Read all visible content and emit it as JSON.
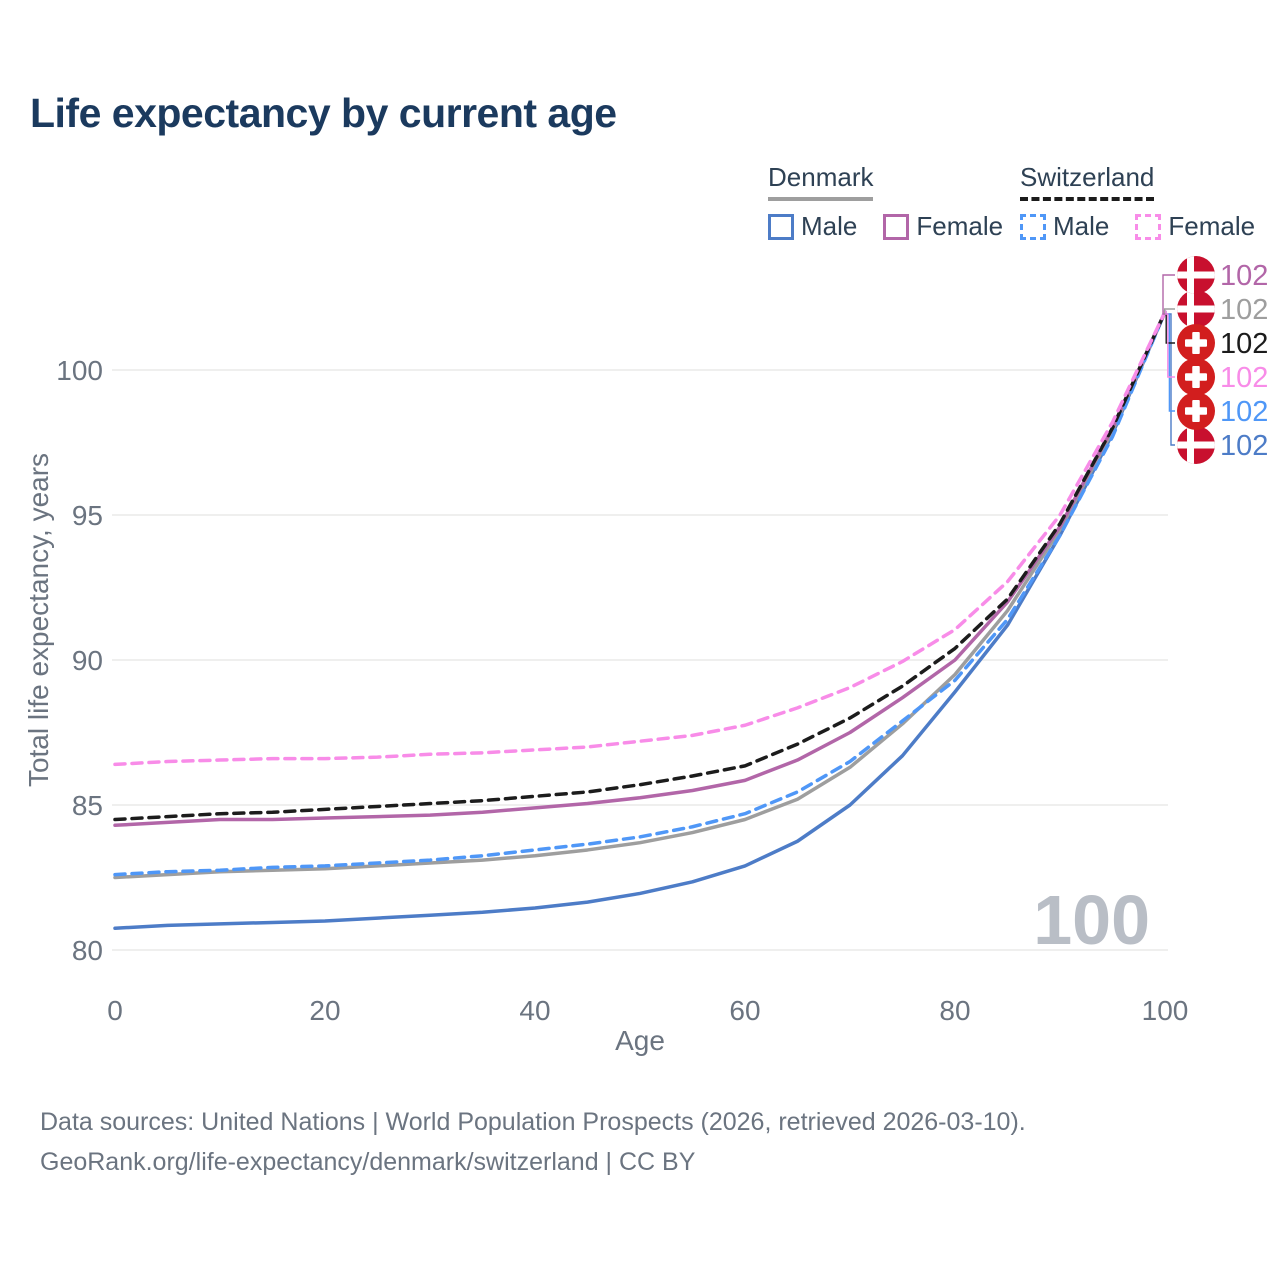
{
  "title": "Life expectancy by current age",
  "legend": {
    "groups": [
      {
        "name": "Denmark",
        "line_color": "#9e9e9e",
        "line_dashed": false,
        "items": [
          {
            "label": "Male",
            "color": "#4d7cc7",
            "dashed": false
          },
          {
            "label": "Female",
            "color": "#b266a8",
            "dashed": false
          }
        ]
      },
      {
        "name": "Switzerland",
        "line_color": "#1c1c1c",
        "line_dashed": true,
        "items": [
          {
            "label": "Male",
            "color": "#4f97f7",
            "dashed": true
          },
          {
            "label": "Female",
            "color": "#f88ce8",
            "dashed": true
          }
        ]
      }
    ]
  },
  "palette": {
    "title_text": "#1b3a5e",
    "legend_text": "#2e4154",
    "axis_text": "#6b7480",
    "grid": "#efefee",
    "watermark": "#b9bec6",
    "denmark_flag_red": "#c8102e",
    "swiss_flag_red": "#d21e1e"
  },
  "watermark_age_counter": "100",
  "chart_data": {
    "type": "line",
    "title": "Life expectancy by current age",
    "xlabel": "Age",
    "ylabel": "Total life expectancy, years",
    "xlim": [
      0,
      100
    ],
    "ylim": [
      80,
      102.5
    ],
    "xticks": [
      0,
      20,
      40,
      60,
      80,
      100
    ],
    "yticks": [
      80,
      85,
      90,
      95,
      100
    ],
    "grid": "horizontal",
    "legend_position": "top-right",
    "x": [
      0,
      5,
      10,
      15,
      20,
      25,
      30,
      35,
      40,
      45,
      50,
      55,
      60,
      65,
      70,
      75,
      80,
      85,
      90,
      95,
      100
    ],
    "series": [
      {
        "id": "denmark-male",
        "name": "Denmark — Male",
        "country": "Denmark",
        "sex": "Male",
        "color": "#4d7cc7",
        "dashed": false,
        "flag": "denmark",
        "end_label": "102",
        "label_row": 5,
        "values": [
          80.75,
          80.85,
          80.9,
          80.95,
          81.0,
          81.1,
          81.2,
          81.3,
          81.45,
          81.65,
          81.95,
          82.35,
          82.9,
          83.75,
          85.0,
          86.7,
          88.9,
          91.2,
          94.3,
          97.8,
          102
        ]
      },
      {
        "id": "denmark-both",
        "name": "Denmark — Both sexes",
        "country": "Denmark",
        "sex": "Both",
        "color": "#9e9e9e",
        "dashed": false,
        "flag": "denmark",
        "end_label": "102",
        "label_row": 1,
        "values": [
          82.5,
          82.6,
          82.7,
          82.75,
          82.8,
          82.9,
          83.0,
          83.1,
          83.25,
          83.45,
          83.7,
          84.05,
          84.5,
          85.2,
          86.3,
          87.8,
          89.5,
          91.7,
          94.5,
          97.9,
          102
        ]
      },
      {
        "id": "denmark-female",
        "name": "Denmark — Female",
        "country": "Denmark",
        "sex": "Female",
        "color": "#b266a8",
        "dashed": false,
        "flag": "denmark",
        "end_label": "102",
        "label_row": 0,
        "values": [
          84.3,
          84.4,
          84.5,
          84.5,
          84.55,
          84.6,
          84.65,
          84.75,
          84.9,
          85.05,
          85.25,
          85.5,
          85.85,
          86.55,
          87.5,
          88.7,
          90.0,
          92.0,
          94.6,
          98.0,
          102
        ]
      },
      {
        "id": "switzerland-male",
        "name": "Switzerland — Male",
        "country": "Switzerland",
        "sex": "Male",
        "color": "#4f97f7",
        "dashed": true,
        "flag": "switzerland",
        "end_label": "102",
        "label_row": 4,
        "values": [
          82.6,
          82.7,
          82.75,
          82.85,
          82.9,
          83.0,
          83.1,
          83.25,
          83.45,
          83.65,
          83.9,
          84.25,
          84.7,
          85.45,
          86.5,
          87.9,
          89.3,
          91.4,
          94.3,
          97.7,
          102
        ]
      },
      {
        "id": "switzerland-both",
        "name": "Switzerland — Both sexes",
        "country": "Switzerland",
        "sex": "Both",
        "color": "#1c1c1c",
        "dashed": true,
        "flag": "switzerland",
        "end_label": "102",
        "label_row": 2,
        "values": [
          84.5,
          84.6,
          84.7,
          84.75,
          84.85,
          84.95,
          85.05,
          85.15,
          85.3,
          85.45,
          85.7,
          86.0,
          86.35,
          87.1,
          88.0,
          89.1,
          90.4,
          92.1,
          94.7,
          98.0,
          102
        ]
      },
      {
        "id": "switzerland-female",
        "name": "Switzerland — Female",
        "country": "Switzerland",
        "sex": "Female",
        "color": "#f88ce8",
        "dashed": true,
        "flag": "switzerland",
        "end_label": "102",
        "label_row": 3,
        "values": [
          86.4,
          86.5,
          86.55,
          86.6,
          86.6,
          86.65,
          86.75,
          86.8,
          86.9,
          87.0,
          87.2,
          87.4,
          87.75,
          88.35,
          89.05,
          89.95,
          91.05,
          92.7,
          95.0,
          98.2,
          102
        ]
      }
    ]
  },
  "footer": {
    "line1": "Data sources: United Nations | World Population Prospects (2026, retrieved 2026-03-10).",
    "line2": "GeoRank.org/life-expectancy/denmark/switzerland | CC BY"
  }
}
